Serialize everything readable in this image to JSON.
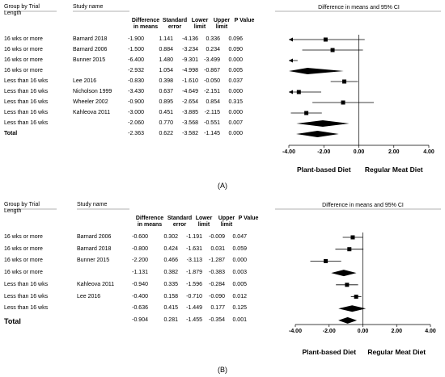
{
  "chart_data": [
    {
      "type": "forest",
      "label": "(A)",
      "group_header": "Group by Trial Length",
      "study_header": "Study name",
      "columns": [
        "Difference in means",
        "Standard error",
        "Lower limit",
        "Upper limit",
        "P Value"
      ],
      "plot_title": "Difference in means and 95% CI",
      "left_label": "Plant-based Diet",
      "right_label": "Regular Meat Diet",
      "xlim": [
        -4,
        4
      ],
      "xticks": [
        {
          "value": -4,
          "label": "-4.00"
        },
        {
          "value": -2,
          "label": "-2.00"
        },
        {
          "value": 0,
          "label": "0.00"
        },
        {
          "value": 2,
          "label": "2.00"
        },
        {
          "value": 4,
          "label": "4.00"
        }
      ],
      "rows": [
        {
          "group": "16 wks or more",
          "study": "Barnard 2018",
          "values": [
            -1.9,
            1.141,
            -4.136,
            0.336,
            0.096
          ],
          "value_labels": [
            "-1.900",
            "1.141",
            "-4.136",
            "0.336",
            "0.096"
          ]
        },
        {
          "group": "16 wks or more",
          "study": "Barnard 2006",
          "values": [
            -1.5,
            0.884,
            -3.234,
            0.234,
            0.09
          ],
          "value_labels": [
            "-1.500",
            "0.884",
            "-3.234",
            "0.234",
            "0.090"
          ]
        },
        {
          "group": "16 wks or more",
          "study": "Bunner 2015",
          "values": [
            -6.4,
            1.48,
            -9.301,
            -3.499,
            0
          ],
          "value_labels": [
            "-6.400",
            "1.480",
            "-9.301",
            "-3.499",
            "0.000"
          ]
        },
        {
          "group": "16 wks or more",
          "study": null,
          "values": [
            -2.932,
            1.054,
            -4.998,
            -0.867,
            0.005
          ],
          "value_labels": [
            "-2.932",
            "1.054",
            "-4.998",
            "-0.867",
            "0.005"
          ]
        },
        {
          "group": "Less than 16 wks",
          "study": "Lee 2016",
          "values": [
            -0.83,
            0.398,
            -1.61,
            -0.05,
            0.037
          ],
          "value_labels": [
            "-0.830",
            "0.398",
            "-1.610",
            "-0.050",
            "0.037"
          ]
        },
        {
          "group": "Less than 16 wks",
          "study": "Nicholson 1999",
          "values": [
            -3.43,
            0.637,
            -4.649,
            -2.151,
            0
          ],
          "value_labels": [
            "-3.430",
            "0.637",
            "-4.649",
            "-2.151",
            "0.000"
          ]
        },
        {
          "group": "Less than 16 wks",
          "study": "Wheeler 2002",
          "values": [
            -0.9,
            0.895,
            -2.654,
            0.854,
            0.315
          ],
          "value_labels": [
            "-0.900",
            "0.895",
            "-2.654",
            "0.854",
            "0.315"
          ]
        },
        {
          "group": "Less than 16 wks",
          "study": "Kahleova 2011",
          "values": [
            -3,
            0.451,
            -3.885,
            -2.115,
            0
          ],
          "value_labels": [
            "-3.000",
            "0.451",
            "-3.885",
            "-2.115",
            "0.000"
          ]
        },
        {
          "group": "Less than 16 wks",
          "study": null,
          "values": [
            -2.06,
            0.77,
            -3.568,
            -0.551,
            0.007
          ],
          "value_labels": [
            "-2.060",
            "0.770",
            "-3.568",
            "-0.551",
            "0.007"
          ]
        },
        {
          "group": "Total",
          "study": null,
          "values": [
            -2.363,
            0.622,
            -3.582,
            -1.145,
            0
          ],
          "value_labels": [
            "-2.363",
            "0.622",
            "-3.582",
            "-1.145",
            "0.000"
          ]
        }
      ]
    },
    {
      "type": "forest",
      "label": "(B)",
      "group_header": "Group by Trial Length",
      "study_header": "Study name",
      "columns": [
        "Difference in means",
        "Standard error",
        "Lower limit",
        "Upper limit",
        "P Value"
      ],
      "plot_title": "Difference in means and 95% CI",
      "left_label": "Plant-based Diet",
      "right_label": "Regular Meat Diet",
      "xlim": [
        -4,
        4
      ],
      "xticks": [
        {
          "value": -4,
          "label": "-4.00"
        },
        {
          "value": -2,
          "label": "-2.00"
        },
        {
          "value": 0,
          "label": "0.00"
        },
        {
          "value": 2,
          "label": "2.00"
        },
        {
          "value": 4,
          "label": "4.00"
        }
      ],
      "rows": [
        {
          "group": "16 wks or more",
          "study": "Barnard 2006",
          "values": [
            -0.6,
            0.302,
            -1.191,
            -0.009,
            0.047
          ],
          "value_labels": [
            "-0.600",
            "0.302",
            "-1.191",
            "-0.009",
            "0.047"
          ]
        },
        {
          "group": "16 wks or more",
          "study": "Barnard 2018",
          "values": [
            -0.8,
            0.424,
            -1.631,
            0.031,
            0.059
          ],
          "value_labels": [
            "-0.800",
            "0.424",
            "-1.631",
            "0.031",
            "0.059"
          ]
        },
        {
          "group": "16 wks or more",
          "study": "Bunner 2015",
          "values": [
            -2.2,
            0.466,
            -3.113,
            -1.287,
            0
          ],
          "value_labels": [
            "-2.200",
            "0.466",
            "-3.113",
            "-1.287",
            "0.000"
          ]
        },
        {
          "group": "16 wks or more",
          "study": null,
          "values": [
            -1.131,
            0.382,
            -1.879,
            -0.383,
            0.003
          ],
          "value_labels": [
            "-1.131",
            "0.382",
            "-1.879",
            "-0.383",
            "0.003"
          ]
        },
        {
          "group": "Less than 16 wks",
          "study": "Kahleova 2011",
          "values": [
            -0.94,
            0.335,
            -1.596,
            -0.284,
            0.005
          ],
          "value_labels": [
            "-0.940",
            "0.335",
            "-1.596",
            "-0.284",
            "0.005"
          ]
        },
        {
          "group": "Less than 16 wks",
          "study": "Lee 2016",
          "values": [
            -0.4,
            0.158,
            -0.71,
            -0.09,
            0.012
          ],
          "value_labels": [
            "-0.400",
            "0.158",
            "-0.710",
            "-0.090",
            "0.012"
          ]
        },
        {
          "group": "Less than 16 wks",
          "study": null,
          "values": [
            -0.636,
            0.415,
            -1.449,
            0.177,
            0.125
          ],
          "value_labels": [
            "-0.636",
            "0.415",
            "-1.449",
            "0.177",
            "0.125"
          ]
        },
        {
          "group": "Total",
          "study": null,
          "values": [
            -0.904,
            0.281,
            -1.455,
            -0.354,
            0.001
          ],
          "value_labels": [
            "-0.904",
            "0.281",
            "-1.455",
            "-0.354",
            "0.001"
          ]
        }
      ]
    }
  ]
}
